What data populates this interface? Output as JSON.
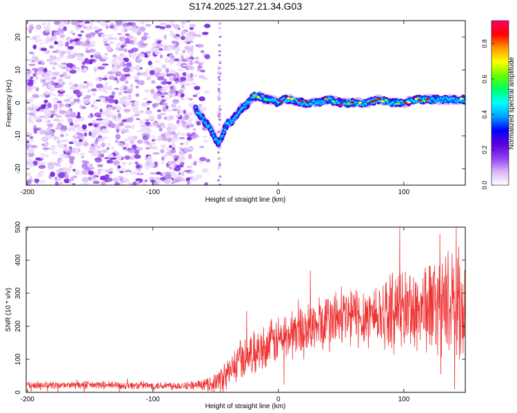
{
  "title": "S174.2025.127.21.34.G03",
  "chart_data": [
    {
      "type": "heatmap",
      "xlabel": "Height of straight line (km)",
      "ylabel": "Frequency (Hz)",
      "xlim": [
        -201,
        149
      ],
      "ylim": [
        -25,
        25
      ],
      "xticks": [
        -200,
        -100,
        0,
        100
      ],
      "yticks": [
        -20,
        -10,
        0,
        10,
        20
      ],
      "grid": false,
      "noise_region_x": [
        -201,
        -60
      ],
      "isolated_streak_x": -47,
      "signal_track": {
        "x": [
          -66,
          -62,
          -58,
          -54,
          -50,
          -48,
          -46,
          -44,
          -42,
          -40,
          -38,
          -36,
          -34,
          -32,
          -30,
          -28,
          -26,
          -24,
          -22,
          -20,
          -18,
          -15,
          -10,
          -5,
          0,
          5,
          10,
          20,
          30,
          40,
          50,
          60,
          70,
          80,
          90,
          100,
          110,
          120,
          130,
          140,
          149
        ],
        "y": [
          -2,
          -4,
          -6,
          -8,
          -11,
          -12,
          -11,
          -9,
          -7,
          -6,
          -6,
          -5,
          -4,
          -3,
          -2,
          -1,
          -1,
          0,
          1,
          2,
          2,
          2,
          1,
          1,
          0,
          1,
          1,
          0,
          0,
          1,
          0,
          0,
          0,
          1,
          0,
          0,
          1,
          1,
          1,
          1,
          1
        ]
      },
      "colorbar": {
        "label": "Normalized spectral amplitude",
        "range": [
          0,
          0.93
        ],
        "ticks": [
          "0.0",
          "0.2",
          "0.4",
          "0.6",
          "0.8"
        ],
        "colormap": [
          "#ffffff",
          "#d9b3f7",
          "#8f3cf2",
          "#5a00d9",
          "#0000ff",
          "#00a0ff",
          "#00ffff",
          "#00ff66",
          "#66ff00",
          "#ffff00",
          "#ff9900",
          "#ff0000",
          "#ff0066"
        ]
      }
    },
    {
      "type": "line",
      "xlabel": "Height of straight line (km)",
      "ylabel": "SNR (10 * v/v)",
      "xlim": [
        -201,
        149
      ],
      "ylim": [
        0,
        500
      ],
      "xticks": [
        -200,
        -100,
        0,
        100
      ],
      "yticks": [
        0,
        100,
        200,
        300,
        400,
        500
      ],
      "grid": false,
      "color": "#ee3333",
      "envelope": {
        "x": [
          -201,
          -150,
          -100,
          -60,
          -50,
          -45,
          -40,
          -35,
          -30,
          -20,
          -10,
          0,
          10,
          20,
          30,
          40,
          50,
          60,
          70,
          80,
          90,
          100,
          110,
          120,
          130,
          140,
          149
        ],
        "mean": [
          22,
          22,
          20,
          22,
          30,
          40,
          55,
          80,
          100,
          120,
          140,
          160,
          175,
          190,
          200,
          215,
          225,
          230,
          235,
          240,
          245,
          250,
          255,
          260,
          265,
          270,
          270
        ],
        "spread": [
          10,
          12,
          12,
          14,
          30,
          45,
          50,
          55,
          60,
          60,
          65,
          70,
          75,
          80,
          85,
          90,
          95,
          95,
          95,
          100,
          110,
          120,
          130,
          140,
          150,
          155,
          155
        ]
      }
    }
  ]
}
